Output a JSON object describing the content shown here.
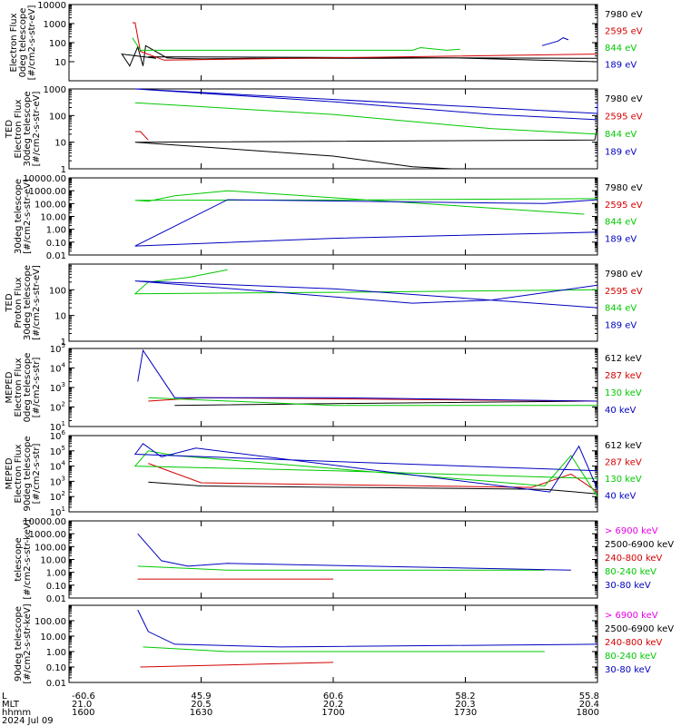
{
  "chart_data": [
    {
      "type": "line",
      "ylabel": [
        "Electron Flux",
        "0deg telescope",
        "[#/cm2-s-str-eV]"
      ],
      "yscale": "log",
      "ylim": [
        1,
        10000
      ],
      "yticks": [
        "10000",
        "1000",
        "100",
        "10"
      ],
      "series": [
        {
          "name": "7980 eV",
          "color": "#000000",
          "points": [
            [
              1806,
              10
            ],
            [
              1745,
              16
            ],
            [
              1719,
              15
            ],
            [
              1691,
              15
            ],
            [
              1669,
              15
            ],
            [
              1651,
              14
            ],
            [
              1640,
              15
            ],
            [
              1637,
              16
            ],
            [
              1629,
              70
            ],
            [
              1628,
              6
            ],
            [
              1626,
              60
            ],
            [
              1623,
              6
            ],
            [
              1620,
              25
            ],
            [
              1633,
              15
            ],
            [
              1630,
              18
            ],
            [
              1800,
              15
            ]
          ]
        },
        {
          "name": "2595 eV",
          "color": "#d40000",
          "points": [
            [
              1801,
              25
            ],
            [
              1636,
              12
            ],
            [
              1627,
              35
            ],
            [
              1625,
              1100
            ],
            [
              1624,
              1100
            ]
          ]
        },
        {
          "name": "844 eV",
          "color": "#00c800",
          "points": [
            [
              1748,
              45
            ],
            [
              1743,
              40
            ],
            [
              1733,
              55
            ],
            [
              1730,
              40
            ],
            [
              1627,
              40
            ],
            [
              1624,
              180
            ]
          ]
        },
        {
          "name": "189 eV",
          "color": "#0000c0",
          "points": [
            [
              1789,
              140
            ],
            [
              1787,
              180
            ],
            [
              1785,
              120
            ],
            [
              1779,
              70
            ]
          ]
        }
      ]
    },
    {
      "type": "line",
      "ylabel": [
        "TED",
        "Electron Flux",
        "30deg telescope",
        "[#/cm2-s-str-eV]"
      ],
      "yscale": "log",
      "ylim": [
        1,
        1000
      ],
      "yticks": [
        "1000",
        "100",
        "10",
        "1"
      ],
      "series": [
        {
          "name": "7980 eV",
          "color": "#000000",
          "points": [
            [
              1800,
              40
            ],
            [
              1799,
              12
            ],
            [
              1625,
              10
            ],
            [
              1700,
              3
            ],
            [
              1730,
              1.2
            ],
            [
              1745,
              1
            ]
          ]
        },
        {
          "name": "2595 eV",
          "color": "#d40000",
          "points": [
            [
              1630,
              12
            ],
            [
              1627,
              25
            ],
            [
              1625,
              25
            ]
          ]
        },
        {
          "name": "844 eV",
          "color": "#00c800",
          "points": [
            [
              1625,
              300
            ],
            [
              1700,
              110
            ],
            [
              1760,
              32
            ],
            [
              1800,
              20
            ]
          ]
        },
        {
          "name": "189 eV",
          "color": "#0000c0",
          "points": [
            [
              1810,
              300
            ],
            [
              1805,
              250
            ],
            [
              1800,
              120
            ],
            [
              1625,
              1000
            ],
            [
              1700,
              330
            ],
            [
              1760,
              110
            ],
            [
              1800,
              70
            ]
          ]
        }
      ]
    },
    {
      "type": "line",
      "ylabel": [
        "30deg telescope",
        "[#/cm2-s-str-eV]"
      ],
      "yscale": "log",
      "ylim": [
        0.01,
        10000
      ],
      "yticks": [
        "10000.00",
        "1000.00",
        "100.00",
        "10.00",
        "1.00",
        "0.10",
        "0.01"
      ],
      "series": [
        {
          "name": "7980 eV",
          "color": "#000000",
          "points": []
        },
        {
          "name": "2595 eV",
          "color": "#d40000",
          "points": []
        },
        {
          "name": "844 eV",
          "color": "#00c800",
          "points": [
            [
              1795,
              15
            ],
            [
              1660,
              1000
            ],
            [
              1640,
              400
            ],
            [
              1630,
              150
            ],
            [
              1625,
              180
            ],
            [
              1700,
              190
            ],
            [
              1800,
              240
            ]
          ]
        },
        {
          "name": "189 eV",
          "color": "#0000c0",
          "points": [
            [
              1810,
              200
            ],
            [
              1780,
              100
            ],
            [
              1660,
              200
            ],
            [
              1625,
              0.05
            ],
            [
              1700,
              0.2
            ],
            [
              1800,
              0.6
            ]
          ]
        }
      ]
    },
    {
      "type": "line",
      "ylabel": [
        "TED",
        "Proton Flux",
        "30deg telescope",
        "[#/cm2-s-str-eV]"
      ],
      "yscale": "log",
      "ylim": [
        1,
        1000
      ],
      "yticks": [
        "100",
        "10",
        "1"
      ],
      "series": [
        {
          "name": "7980 eV",
          "color": "#000000",
          "points": []
        },
        {
          "name": "2595 eV",
          "color": "#d40000",
          "points": []
        },
        {
          "name": "844 eV",
          "color": "#00c800",
          "points": [
            [
              1660,
              600
            ],
            [
              1645,
              300
            ],
            [
              1630,
              200
            ],
            [
              1625,
              70
            ],
            [
              1700,
              80
            ],
            [
              1800,
              100
            ]
          ]
        },
        {
          "name": "189 eV",
          "color": "#0000c0",
          "points": [
            [
              1810,
              150
            ],
            [
              1760,
              40
            ],
            [
              1730,
              30
            ],
            [
              1625,
              220
            ],
            [
              1700,
              110
            ],
            [
              1800,
              20
            ]
          ]
        }
      ]
    },
    {
      "type": "line",
      "ylabel": [
        "MEPED",
        "Electron Flux",
        "0deg telescope",
        "[#/cm2-s-str]"
      ],
      "yscale": "log",
      "ylim": [
        10,
        100000
      ],
      "yticks": [
        "10^5",
        "10^4",
        "10^3",
        "10^2",
        "10^1"
      ],
      "series": [
        {
          "name": "612 keV",
          "color": "#000000",
          "points": [
            [
              1795,
              200
            ],
            [
              1700,
              150
            ],
            [
              1640,
              120
            ]
          ]
        },
        {
          "name": "287 keV",
          "color": "#d40000",
          "points": [
            [
              1800,
              200
            ],
            [
              1650,
              300
            ],
            [
              1630,
              200
            ]
          ]
        },
        {
          "name": "130 keV",
          "color": "#00c800",
          "points": [
            [
              1800,
              120
            ],
            [
              1700,
              120
            ],
            [
              1630,
              300
            ]
          ]
        },
        {
          "name": "40 keV",
          "color": "#0000c0",
          "points": [
            [
              1800,
              200
            ],
            [
              1700,
              300
            ],
            [
              1640,
              300
            ],
            [
              1628,
              80000
            ],
            [
              1626,
              2000
            ]
          ]
        }
      ]
    },
    {
      "type": "line",
      "ylabel": [
        "MEPED",
        "Electron Flux",
        "90deg telescope",
        "[#/cm2-s-str]"
      ],
      "yscale": "log",
      "ylim": [
        10,
        1000000
      ],
      "yticks": [
        "10^6",
        "10^5",
        "10^4",
        "10^3",
        "10^2",
        "10^1"
      ],
      "series": [
        {
          "name": "612 keV",
          "color": "#000000",
          "points": [
            [
              1800,
              150
            ],
            [
              1780,
              300
            ],
            [
              1650,
              500
            ],
            [
              1630,
              900
            ]
          ]
        },
        {
          "name": "287 keV",
          "color": "#d40000",
          "points": [
            [
              1800,
              200
            ],
            [
              1790,
              3000
            ],
            [
              1775,
              400
            ],
            [
              1650,
              800
            ],
            [
              1630,
              15000
            ]
          ]
        },
        {
          "name": "130 keV",
          "color": "#00c800",
          "points": [
            [
              1800,
              100
            ],
            [
              1790,
              50000
            ],
            [
              1780,
              500
            ],
            [
              1640,
              50000
            ],
            [
              1630,
              100000
            ],
            [
              1625,
              10000
            ],
            [
              1700,
              5000
            ],
            [
              1800,
              1500
            ]
          ]
        },
        {
          "name": "40 keV",
          "color": "#0000c0",
          "points": [
            [
              1800,
              300
            ],
            [
              1793,
              200000
            ],
            [
              1782,
              200
            ],
            [
              1648,
              150000
            ],
            [
              1635,
              40000
            ],
            [
              1628,
              300000
            ],
            [
              1625,
              60000
            ],
            [
              1700,
              20000
            ],
            [
              1800,
              5000
            ]
          ]
        }
      ]
    },
    {
      "type": "line",
      "ylabel": [
        "telescope",
        "[#/cm2-s-str-keV]"
      ],
      "yscale": "log",
      "ylim": [
        0.01,
        10000
      ],
      "yticks": [
        "10000.00",
        "1000.00",
        "100.00",
        "10.00",
        "1.00",
        "0.10",
        "0.01"
      ],
      "series": [
        {
          "name": "> 6900 keV",
          "color": "#e600e6",
          "points": []
        },
        {
          "name": "2500-6900 keV",
          "color": "#000000",
          "points": []
        },
        {
          "name": "240-800 keV",
          "color": "#d40000",
          "points": [
            [
              1700,
              0.3
            ],
            [
              1626,
              0.3
            ]
          ]
        },
        {
          "name": "80-240 keV",
          "color": "#00c800",
          "points": [
            [
              1780,
              1.5
            ],
            [
              1660,
              1.5
            ],
            [
              1626,
              3
            ]
          ]
        },
        {
          "name": "30-80 keV",
          "color": "#0000c0",
          "points": [
            [
              1790,
              1.5
            ],
            [
              1660,
              5
            ],
            [
              1645,
              3
            ],
            [
              1635,
              8
            ],
            [
              1626,
              1000
            ]
          ]
        }
      ]
    },
    {
      "type": "line",
      "ylabel": [
        "90deg telescope",
        "[#/cm2-s-str-keV]"
      ],
      "yscale": "log",
      "ylim": [
        0.01,
        1000
      ],
      "yticks": [
        "100.00",
        "10.00",
        "1.00",
        "0.10",
        "0.01"
      ],
      "series": [
        {
          "name": "> 6900 keV",
          "color": "#e600e6",
          "points": []
        },
        {
          "name": "2500-6900 keV",
          "color": "#000000",
          "points": []
        },
        {
          "name": "240-800 keV",
          "color": "#d40000",
          "points": [
            [
              1700,
              0.2
            ],
            [
              1627,
              0.1
            ]
          ]
        },
        {
          "name": "80-240 keV",
          "color": "#00c800",
          "points": [
            [
              1780,
              1
            ],
            [
              1660,
              1
            ],
            [
              1628,
              2
            ]
          ]
        },
        {
          "name": "30-80 keV",
          "color": "#0000c0",
          "points": [
            [
              1800,
              3
            ],
            [
              1680,
              2
            ],
            [
              1640,
              3
            ],
            [
              1630,
              20
            ],
            [
              1626,
              500
            ]
          ]
        }
      ]
    }
  ],
  "x_axis": {
    "row_labels": [
      "L",
      "MLT",
      "hhmm",
      "2024 Jul 09"
    ],
    "ticks": [
      {
        "l": "-60.6",
        "mlt": "21.0",
        "time": "1600"
      },
      {
        "l": "45.9",
        "mlt": "20.5",
        "time": "1630"
      },
      {
        "l": "60.6",
        "mlt": "20.2",
        "time": "1700"
      },
      {
        "l": "58.2",
        "mlt": "20.3",
        "time": "1730"
      },
      {
        "l": "55.8",
        "mlt": "20.4",
        "time": "1800"
      }
    ]
  }
}
